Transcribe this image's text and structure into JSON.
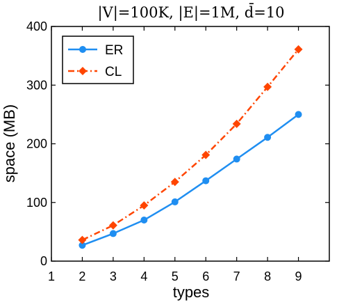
{
  "chart_data": {
    "type": "line",
    "title": "|V|=100K, |E|=1M, d̄=10",
    "xlabel": "types",
    "ylabel": "space (MB)",
    "xlim": [
      1,
      10
    ],
    "ylim": [
      0,
      400
    ],
    "xticks": [
      "1",
      "2",
      "3",
      "4",
      "5",
      "6",
      "7",
      "8",
      "9"
    ],
    "yticks": [
      "0",
      "100",
      "200",
      "300",
      "400"
    ],
    "grid": false,
    "legend_position": "top-left",
    "x": [
      2,
      3,
      4,
      5,
      6,
      7,
      8,
      9
    ],
    "series": [
      {
        "name": "ER",
        "values": [
          27,
          47,
          70,
          101,
          137,
          174,
          211,
          250
        ],
        "color": "#1f8ef1",
        "line_style": "solid",
        "marker": "circle"
      },
      {
        "name": "CL",
        "values": [
          36,
          61,
          95,
          135,
          181,
          234,
          297,
          361
        ],
        "color": "#ff4500",
        "line_style": "dash-dot",
        "marker": "diamond"
      }
    ]
  }
}
